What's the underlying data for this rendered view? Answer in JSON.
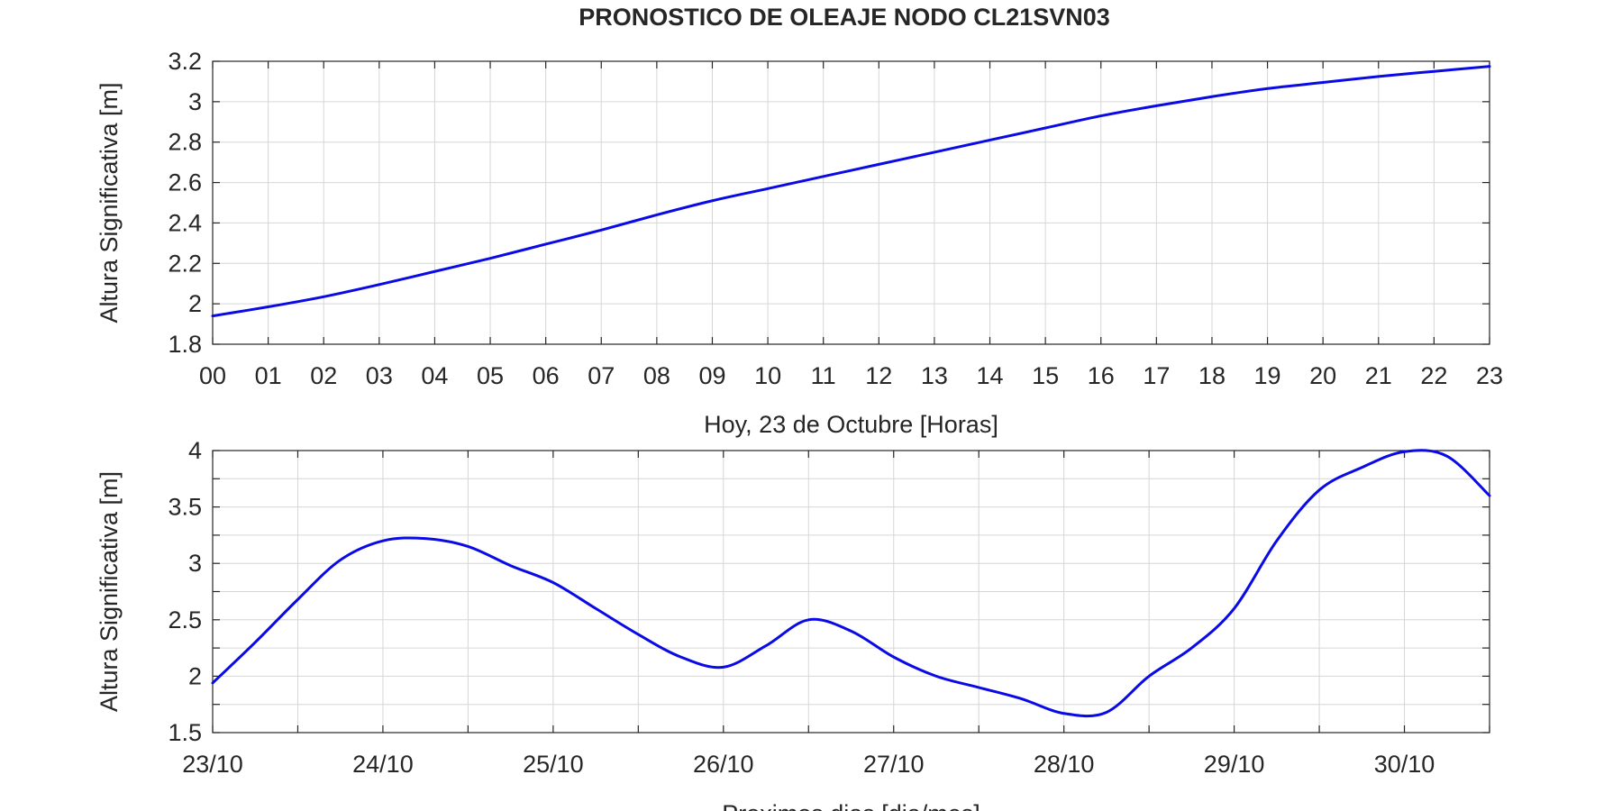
{
  "title": "PRONOSTICO DE OLEAJE NODO CL21SVN03",
  "line_color": "#0a0ae6",
  "chart_data": [
    {
      "type": "line",
      "xlabel": "Hoy, 23 de   Octubre   [Horas]",
      "ylabel": "Altura Significativa [m]",
      "xlim": [
        0,
        23
      ],
      "ylim": [
        1.8,
        3.2
      ],
      "xticks": [
        0,
        1,
        2,
        3,
        4,
        5,
        6,
        7,
        8,
        9,
        10,
        11,
        12,
        13,
        14,
        15,
        16,
        17,
        18,
        19,
        20,
        21,
        22,
        23
      ],
      "xtick_labels": [
        "00",
        "01",
        "02",
        "03",
        "04",
        "05",
        "06",
        "07",
        "08",
        "09",
        "10",
        "11",
        "12",
        "13",
        "14",
        "15",
        "16",
        "17",
        "18",
        "19",
        "20",
        "21",
        "22",
        "23"
      ],
      "yticks": [
        1.8,
        2,
        2.2,
        2.4,
        2.6,
        2.8,
        3,
        3.2
      ],
      "ytick_labels": [
        "1.8",
        "2",
        "2.2",
        "2.4",
        "2.6",
        "2.8",
        "3",
        "3.2"
      ],
      "grid": true,
      "x": [
        0,
        1,
        2,
        3,
        4,
        5,
        6,
        7,
        8,
        9,
        10,
        11,
        12,
        13,
        14,
        15,
        16,
        17,
        18,
        19,
        20,
        21,
        22,
        23
      ],
      "y": [
        1.94,
        1.985,
        2.035,
        2.095,
        2.16,
        2.225,
        2.295,
        2.365,
        2.44,
        2.51,
        2.57,
        2.63,
        2.69,
        2.75,
        2.81,
        2.87,
        2.93,
        2.98,
        3.025,
        3.065,
        3.095,
        3.125,
        3.15,
        3.175
      ]
    },
    {
      "type": "line",
      "xlabel": "Proximos dias [dia/mes]",
      "ylabel": "Altura Significativa [m]",
      "xlim": [
        "2023-10-23T00:00",
        "2023-10-30T12:00"
      ],
      "ylim": [
        1.5,
        4
      ],
      "xticks": [
        "2023-10-23",
        "2023-10-24",
        "2023-10-25",
        "2023-10-26",
        "2023-10-27",
        "2023-10-28",
        "2023-10-29",
        "2023-10-30"
      ],
      "xtick_labels": [
        "23/10",
        "24/10",
        "25/10",
        "26/10",
        "27/10",
        "28/10",
        "29/10",
        "30/10"
      ],
      "yticks": [
        1.5,
        2,
        2.5,
        3,
        3.5,
        4
      ],
      "ytick_labels": [
        "1.5",
        "2",
        "2.5",
        "3",
        "3.5",
        "4"
      ],
      "grid": true,
      "x": [
        "2023-10-23T00:00",
        "2023-10-23T06:00",
        "2023-10-23T12:00",
        "2023-10-23T18:00",
        "2023-10-24T00:00",
        "2023-10-24T06:00",
        "2023-10-24T12:00",
        "2023-10-24T18:00",
        "2023-10-25T00:00",
        "2023-10-25T06:00",
        "2023-10-25T12:00",
        "2023-10-25T18:00",
        "2023-10-26T00:00",
        "2023-10-26T06:00",
        "2023-10-26T12:00",
        "2023-10-26T18:00",
        "2023-10-27T00:00",
        "2023-10-27T06:00",
        "2023-10-27T12:00",
        "2023-10-27T18:00",
        "2023-10-28T00:00",
        "2023-10-28T06:00",
        "2023-10-28T12:00",
        "2023-10-28T18:00",
        "2023-10-29T00:00",
        "2023-10-29T06:00",
        "2023-10-29T12:00",
        "2023-10-29T18:00",
        "2023-10-30T00:00",
        "2023-10-30T06:00",
        "2023-10-30T12:00"
      ],
      "y": [
        1.94,
        2.3,
        2.68,
        3.03,
        3.2,
        3.22,
        3.15,
        2.98,
        2.83,
        2.6,
        2.37,
        2.17,
        2.08,
        2.27,
        2.5,
        2.4,
        2.17,
        2.0,
        1.9,
        1.8,
        1.67,
        1.68,
        2.0,
        2.25,
        2.6,
        3.2,
        3.65,
        3.85,
        3.99,
        3.95,
        3.6
      ]
    }
  ]
}
